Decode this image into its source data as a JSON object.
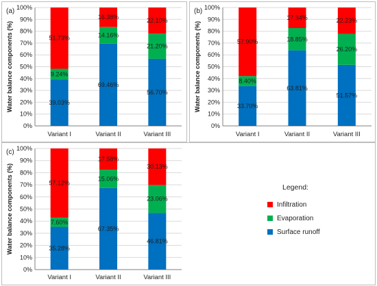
{
  "colors": {
    "Infiltration": "#ff0000",
    "Evaporation": "#00b050",
    "Surface runoff": "#0070c0"
  },
  "legend": {
    "title": "Legend:",
    "items": [
      {
        "label": "Infiltration",
        "key": "Infiltration"
      },
      {
        "label": "Evaporation",
        "key": "Evaporation"
      },
      {
        "label": "Surface runoff",
        "key": "Surface runoff"
      }
    ]
  },
  "chart_data": [
    {
      "type": "bar",
      "stacked": true,
      "panel_label": "(a)",
      "ylabel": "Water balance components (%)",
      "ylim": [
        0,
        100
      ],
      "yticks": [
        "0%",
        "10%",
        "20%",
        "30%",
        "40%",
        "50%",
        "60%",
        "70%",
        "80%",
        "90%",
        "100%"
      ],
      "categories": [
        "Variant I",
        "Variant II",
        "Variant III"
      ],
      "series": [
        {
          "name": "Surface runoff",
          "values": [
            39.03,
            69.46,
            56.7
          ],
          "labels": [
            "39.03%",
            "69.46%",
            "56.70%"
          ]
        },
        {
          "name": "Evaporation",
          "values": [
            9.24,
            14.16,
            21.2
          ],
          "labels": [
            "9.24%",
            "14.16%",
            "21.20%"
          ]
        },
        {
          "name": "Infiltration",
          "values": [
            51.73,
            16.38,
            22.1
          ],
          "labels": [
            "51.73%",
            "16.38%",
            "22.10%"
          ]
        }
      ]
    },
    {
      "type": "bar",
      "stacked": true,
      "panel_label": "(b)",
      "ylabel": "Water balance components (%)",
      "ylim": [
        0,
        100
      ],
      "yticks": [
        "0%",
        "10%",
        "20%",
        "30%",
        "40%",
        "50%",
        "60%",
        "70%",
        "80%",
        "90%",
        "100%"
      ],
      "categories": [
        "Variant I",
        "Variant II",
        "Variant III"
      ],
      "series": [
        {
          "name": "Surface runoff",
          "values": [
            33.7,
            63.81,
            51.57
          ],
          "labels": [
            "33.70%",
            "63.81%",
            "51.57%"
          ]
        },
        {
          "name": "Evaporation",
          "values": [
            8.4,
            18.85,
            26.2
          ],
          "labels": [
            "8.40%",
            "18.85%",
            "26.20%"
          ]
        },
        {
          "name": "Infiltration",
          "values": [
            57.9,
            17.34,
            22.23
          ],
          "labels": [
            "57.90%",
            "17.34%",
            "22.23%"
          ]
        }
      ]
    },
    {
      "type": "bar",
      "stacked": true,
      "panel_label": "(c)",
      "ylabel": "Water balance components (%)",
      "ylim": [
        0,
        100
      ],
      "yticks": [
        "0%",
        "10%",
        "20%",
        "30%",
        "40%",
        "50%",
        "60%",
        "70%",
        "80%",
        "90%",
        "100%"
      ],
      "categories": [
        "Variant I",
        "Variant II",
        "Variant III"
      ],
      "series": [
        {
          "name": "Surface runoff",
          "values": [
            35.28,
            67.35,
            46.81
          ],
          "labels": [
            "35.28%",
            "67.35%",
            "46.81%"
          ]
        },
        {
          "name": "Evaporation",
          "values": [
            7.6,
            15.06,
            23.06
          ],
          "labels": [
            "7.60%",
            "15.06%",
            "23.06%"
          ]
        },
        {
          "name": "Infiltration",
          "values": [
            57.12,
            17.58,
            30.13
          ],
          "labels": [
            "57.12%",
            "17.58%",
            "30.13%"
          ]
        }
      ]
    }
  ]
}
